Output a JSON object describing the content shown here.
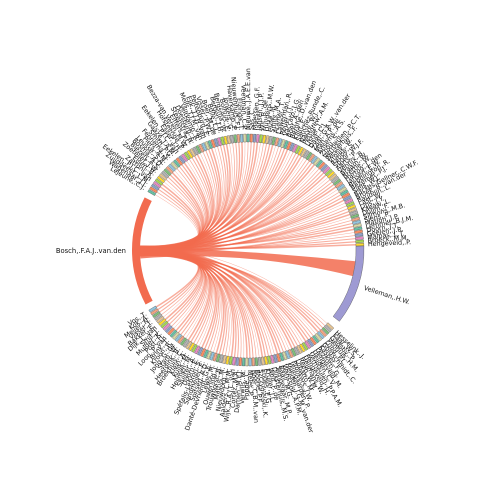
{
  "chart_data": {
    "type": "chord",
    "title": "",
    "hub": {
      "label": "Bosch,.F.A.J..van.den",
      "color": "#f26b4f"
    },
    "major_target": {
      "label": "Velleman,.H.W.",
      "color": "#9e9ad3"
    },
    "nodes": [
      "Lejeune,.C.J.",
      "Wagenaar,.J.J.",
      "Zuijdgeest,.L.M.",
      "Eekelen,.P.J.C..van",
      "Zattoni,.A.",
      "Elsen,.B.",
      "Zoetelief,.J.W.",
      "Biezen,.A.S.",
      "Bosma,.A.D.",
      "Leusse,.S.A.",
      "Piers,.A.M.",
      "Fennema,.S.",
      "Smith,.P.G.",
      "Gaaze,.J.A.M.",
      "Eekelen,.P.J.C..van",
      "Esser,.J.H.",
      "Hofsteenge,.P.",
      "Bezza-van.Veren,.M.W.",
      "Elffers,.P.C.",
      "Steenstra,.H.",
      "Doesburg,.E.",
      "Veltkamp,.R.",
      "Melis,.T.J.M..van",
      "Eijk,.T.J.H..van",
      "Peltenburg,.E.",
      "Visser,.P.W.L.",
      "Boer,.M..de",
      "Bulle,.L.L.",
      "Bergen,.J.H.",
      "Bergsma,.W.",
      "Bolhuis,.E.",
      "Jonkers,.G.",
      "Haverkamp,.P.",
      "Nieuwenhuis,.F.J.",
      "Elzinga,.T.",
      "Veenman,.C.P.",
      "Nieuwe,.J.A.E.E.van",
      "Sas,.C.",
      "Maessen,.G.F.",
      "Jansen,.J.J.P.",
      "Wit,.B..de",
      "Huygens,.M.W.",
      "Huse,.M.",
      "Smits,.M.A.",
      "Atamer,.T.",
      "Lawerman,.R.",
      "Reuer,.J.J.",
      "Vaccaro,.I.G.",
      "Boer,.A..den",
      "Berghe,.D..van.den",
      "Klijn,.E.",
      "Sanchez-Runde,.C.",
      "Narye,.W.J.",
      "Pettigrew,.A.M.",
      "Usher,.J.",
      "Daal,.C.J.",
      "Zaal,.G.A.W..van.der",
      "Man,.A.P..de",
      "Velleman,.H.W.",
      "Ansems,.A.S.",
      "Zhou,.S.",
      "Vermeulen,.P.C.T.",
      "Westerhuis,.F.",
      "Vrolijk,.W.",
      "Rabbe,.S.",
      "Spoor,.W.J.F.",
      "Aarts,.P.",
      "Vennix,.B.",
      "Braam,.W.",
      "Brettle,.W.",
      "Hartog,.J..den",
      "Jansen,.E.W.",
      "Bebbington,.R.",
      "Bezemer,.P.J.",
      "Siels,.W.J.",
      "Backes-Gellner,.C.W.F.",
      "Broek,.B..van.der",
      "Baudoin,.L.",
      "Last,.W.",
      "Lips,.J.Y.",
      "Kaeaw,.L.",
      "Duijm,.F.",
      "Sijmons,.M.B.",
      "Siens,.P.",
      "Matlon,.J.P.",
      "Lemmet,.B.J.M.",
      "Doorn,.J.T.",
      "Geelen,.J.R.",
      "Malpas,.L.T.",
      "Broeck,.M.M.",
      "Hengeveld,.P.",
      "Hesselink,.J.",
      "Kaal,.W.S.",
      "Gadsby,.P.",
      "Venhuis,.H.M.",
      "Lund,.P.L.",
      "Goldschmidt,.C.",
      "Kasper,.F.",
      "Pezzotti,.G.",
      "Hengeveld,.M.",
      "Heijden,.C.V.",
      "Vermeulen,.P.P.A.M.",
      "Hengeveld,.H.",
      "Heijmans,.W.",
      "Reeb,.W.M.",
      "Lobatto,.M.",
      "Pronkers,.J.W.",
      "Wijngaarden,.P.",
      "Heijden,.J.G.M..van.der",
      "Wanssink,.A.P.M.",
      "Baali,.M.G.",
      "Tempelaar,.M.P.",
      "Dijksterhuis,.M.S.",
      "Wolf,.P..de",
      "Kruijer,.J.L.",
      "Endes,.E.G.",
      "Szczygielski,.K.",
      "Boone,.P.F.",
      "Boer,.C.B.M..van",
      "Meier,.P.",
      "Poppe,.C.",
      "Verwijs,.M.",
      "Damen,.M.F.J.",
      "Cortez,.M.A.",
      "Wijk,.R.A.J.L..van",
      "Aalders,.L.M.M.",
      "Nieuwdorp,.L.",
      "Mattijs,.M.",
      "Trouwborst,.B.",
      "Ouwerling,.I.",
      "Lewis,.M.",
      "Danté-Devriendt,.G.E.",
      "Spitsen,.A.D.",
      "Sandmeijer,.E.",
      "Spéfalis-Lebron,.S.",
      "Doorn,.E.",
      "Sluijter,.A.",
      "Heijmen,.M.",
      "Kuijk,.M.",
      "Klein,.A.",
      "Broekhuis,.C.",
      "Heerdink,.B.",
      "Stam,.W.",
      "Jong,.G..de",
      "Kroon,.R.",
      "Brink,.T.",
      "Loon,.P..van",
      "Post,.H.",
      "Mulder,.K.",
      "Smit,.J.",
      "Dijk,.L..van",
      "Bakker,.E.",
      "Visser,.I.",
      "Meijer,.N.",
      "Kok,.A.",
      "Vos,.T."
    ],
    "links": "Bosch,.F.A.J..van.den → every other node; width proportional to co-authorship; thickest link to Velleman,.H.W."
  }
}
